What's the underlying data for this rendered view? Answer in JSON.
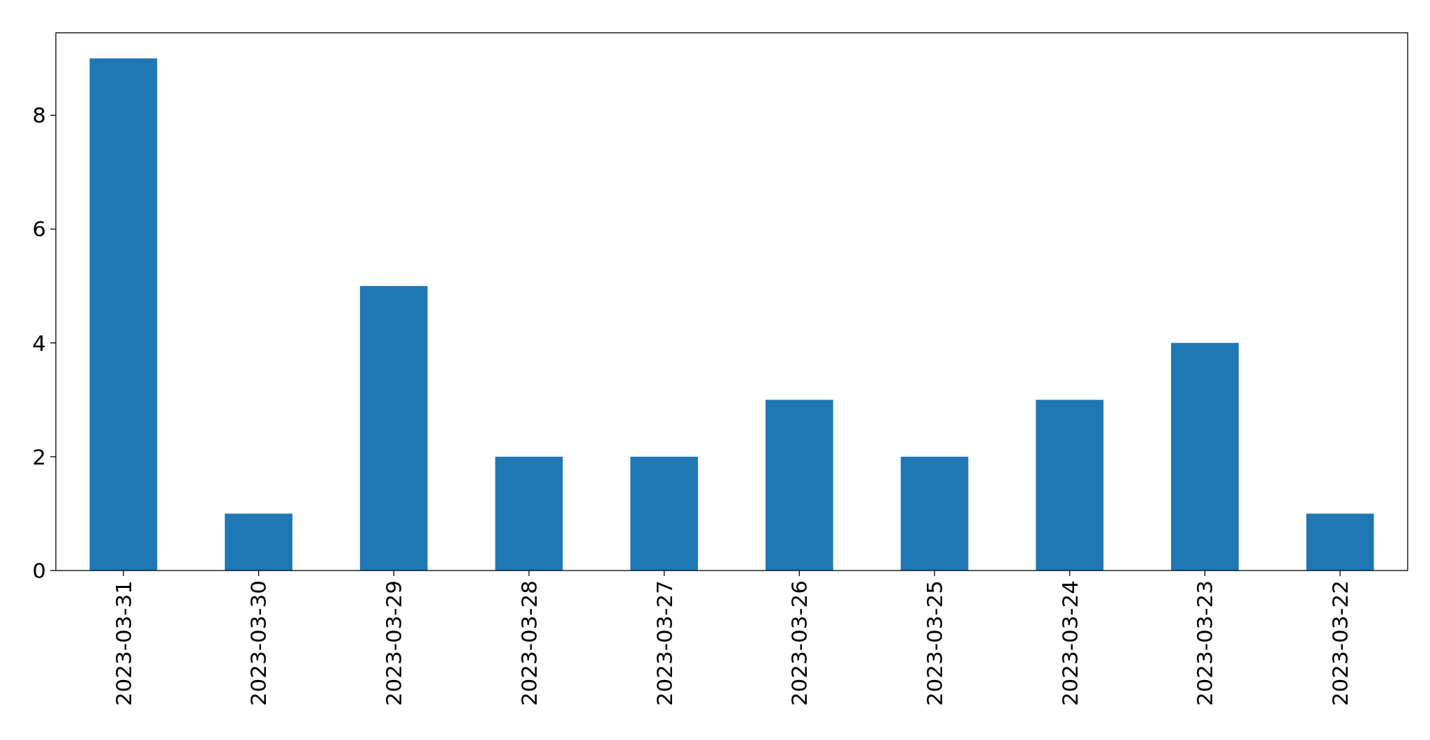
{
  "chart_data": {
    "type": "bar",
    "categories": [
      "2023-03-31",
      "2023-03-30",
      "2023-03-29",
      "2023-03-28",
      "2023-03-27",
      "2023-03-26",
      "2023-03-25",
      "2023-03-24",
      "2023-03-23",
      "2023-03-22"
    ],
    "values": [
      9,
      1,
      5,
      2,
      2,
      3,
      2,
      3,
      4,
      1
    ],
    "color": "#1f77b4",
    "ylim": [
      0,
      9.45
    ],
    "yticks": [
      0,
      2,
      4,
      6,
      8
    ],
    "grid": false
  }
}
